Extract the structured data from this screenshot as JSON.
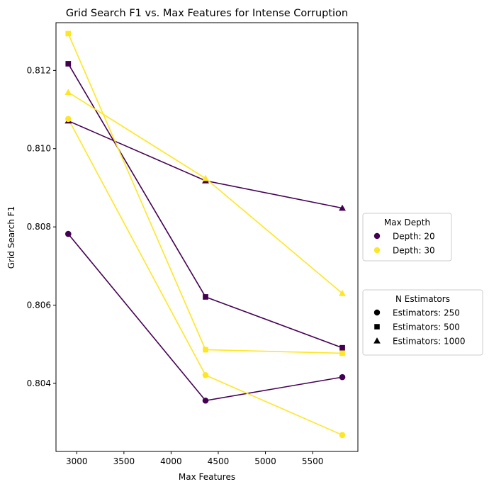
{
  "chart_data": {
    "type": "line",
    "title": "Grid Search F1 vs. Max Features for Intense Corruption",
    "xlabel": "Max Features",
    "ylabel": "Grid Search F1",
    "xlim": [
      2780,
      5980
    ],
    "ylim": [
      0.80226,
      0.81322
    ],
    "xticks": [
      3000,
      3500,
      4000,
      4500,
      5000,
      5500
    ],
    "xtick_labels": [
      "3000",
      "3500",
      "4000",
      "4500",
      "5000",
      "5500"
    ],
    "yticks": [
      0.804,
      0.806,
      0.808,
      0.81,
      0.812
    ],
    "ytick_labels": [
      "0.804",
      "0.806",
      "0.808",
      "0.810",
      "0.812"
    ],
    "grid": false,
    "series": [
      {
        "depth": "Depth: 20",
        "estimators": "Estimators: 250",
        "color": "#440154",
        "marker": "circle",
        "x": [
          2910,
          4365,
          5815
        ],
        "y": [
          0.80782,
          0.80356,
          0.80416
        ]
      },
      {
        "depth": "Depth: 20",
        "estimators": "Estimators: 500",
        "color": "#440154",
        "marker": "square",
        "x": [
          2910,
          4365,
          5815
        ],
        "y": [
          0.81217,
          0.80621,
          0.80491
        ]
      },
      {
        "depth": "Depth: 20",
        "estimators": "Estimators: 1000",
        "color": "#440154",
        "marker": "triangle",
        "x": [
          2910,
          4365,
          5815
        ],
        "y": [
          0.81071,
          0.80918,
          0.80848
        ]
      },
      {
        "depth": "Depth: 30",
        "estimators": "Estimators: 250",
        "color": "#fde725",
        "marker": "circle",
        "x": [
          2910,
          4365,
          5815
        ],
        "y": [
          0.81076,
          0.80421,
          0.80268
        ]
      },
      {
        "depth": "Depth: 30",
        "estimators": "Estimators: 500",
        "color": "#fde725",
        "marker": "square",
        "x": [
          2910,
          4365,
          5815
        ],
        "y": [
          0.81294,
          0.80486,
          0.80477
        ]
      },
      {
        "depth": "Depth: 30",
        "estimators": "Estimators: 1000",
        "color": "#fde725",
        "marker": "triangle",
        "x": [
          2910,
          4365,
          5815
        ],
        "y": [
          0.81144,
          0.80924,
          0.8063
        ]
      }
    ],
    "legends": [
      {
        "title": "Max Depth",
        "placement": "center-right",
        "entries": [
          {
            "label": "Depth: 20",
            "marker": "circle",
            "color": "#440154"
          },
          {
            "label": "Depth: 30",
            "marker": "circle",
            "color": "#fde725"
          }
        ]
      },
      {
        "title": "N Estimators",
        "placement": "center-right",
        "entries": [
          {
            "label": "Estimators: 250",
            "marker": "circle",
            "color": "#000000"
          },
          {
            "label": "Estimators: 500",
            "marker": "square",
            "color": "#000000"
          },
          {
            "label": "Estimators: 1000",
            "marker": "triangle",
            "color": "#000000"
          }
        ]
      }
    ]
  }
}
